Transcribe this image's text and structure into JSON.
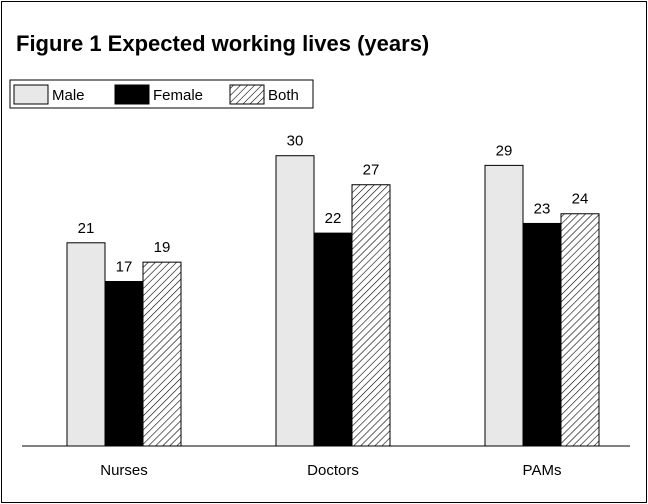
{
  "chart_data": {
    "type": "bar",
    "title": "Figure 1  Expected working lives (years)",
    "categories": [
      "Nurses",
      "Doctors",
      "PAMs"
    ],
    "series": [
      {
        "name": "Male",
        "color": "#e8e8e8",
        "values": [
          21,
          30,
          29
        ]
      },
      {
        "name": "Female",
        "color": "#000000",
        "values": [
          17,
          22,
          23
        ]
      },
      {
        "name": "Both",
        "color": "#000000",
        "pattern": "hatch",
        "values": [
          19,
          27,
          24
        ]
      }
    ],
    "ylim": [
      0,
      34
    ],
    "legend": "top-left",
    "grid": false
  }
}
